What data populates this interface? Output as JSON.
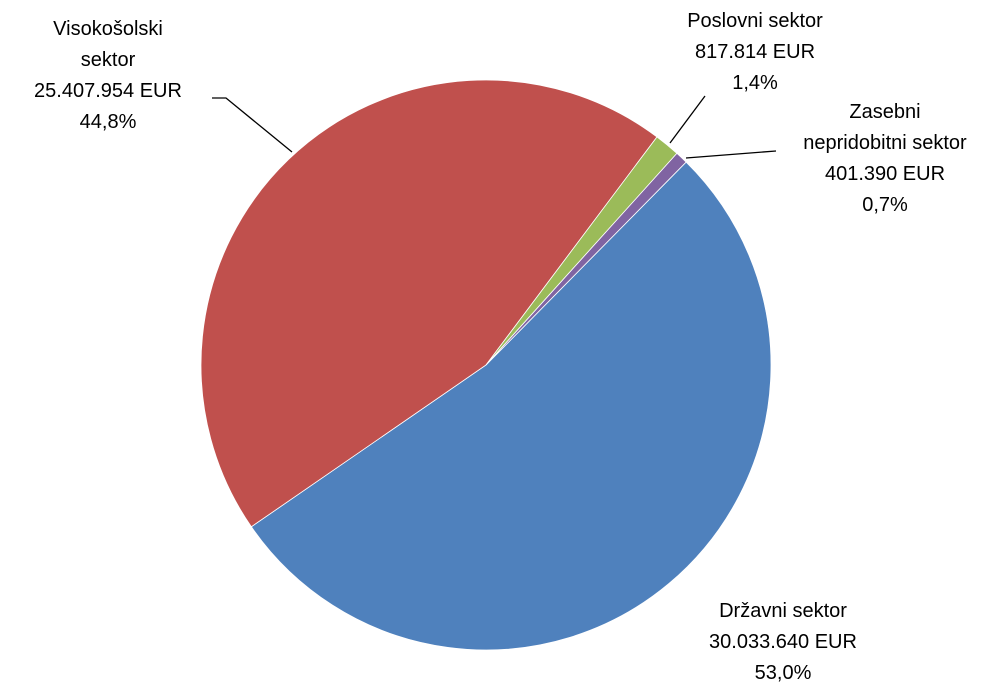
{
  "chart_data": {
    "type": "pie",
    "categories": [
      "Državni sektor",
      "Visokošolski sektor",
      "Poslovni sektor",
      "Zasebni nepridobitni sektor"
    ],
    "values": [
      30033640,
      25407954,
      817814,
      401390
    ],
    "value_labels": [
      "30.033.640 EUR",
      "25.407.954 EUR",
      "817.814 EUR",
      "401.390 EUR"
    ],
    "percent_labels": [
      "53,0%",
      "44,8%",
      "1,4%",
      "0,7%"
    ],
    "colors": [
      "#4f81bd",
      "#c0504d",
      "#9bbb59",
      "#8064a2"
    ]
  }
}
